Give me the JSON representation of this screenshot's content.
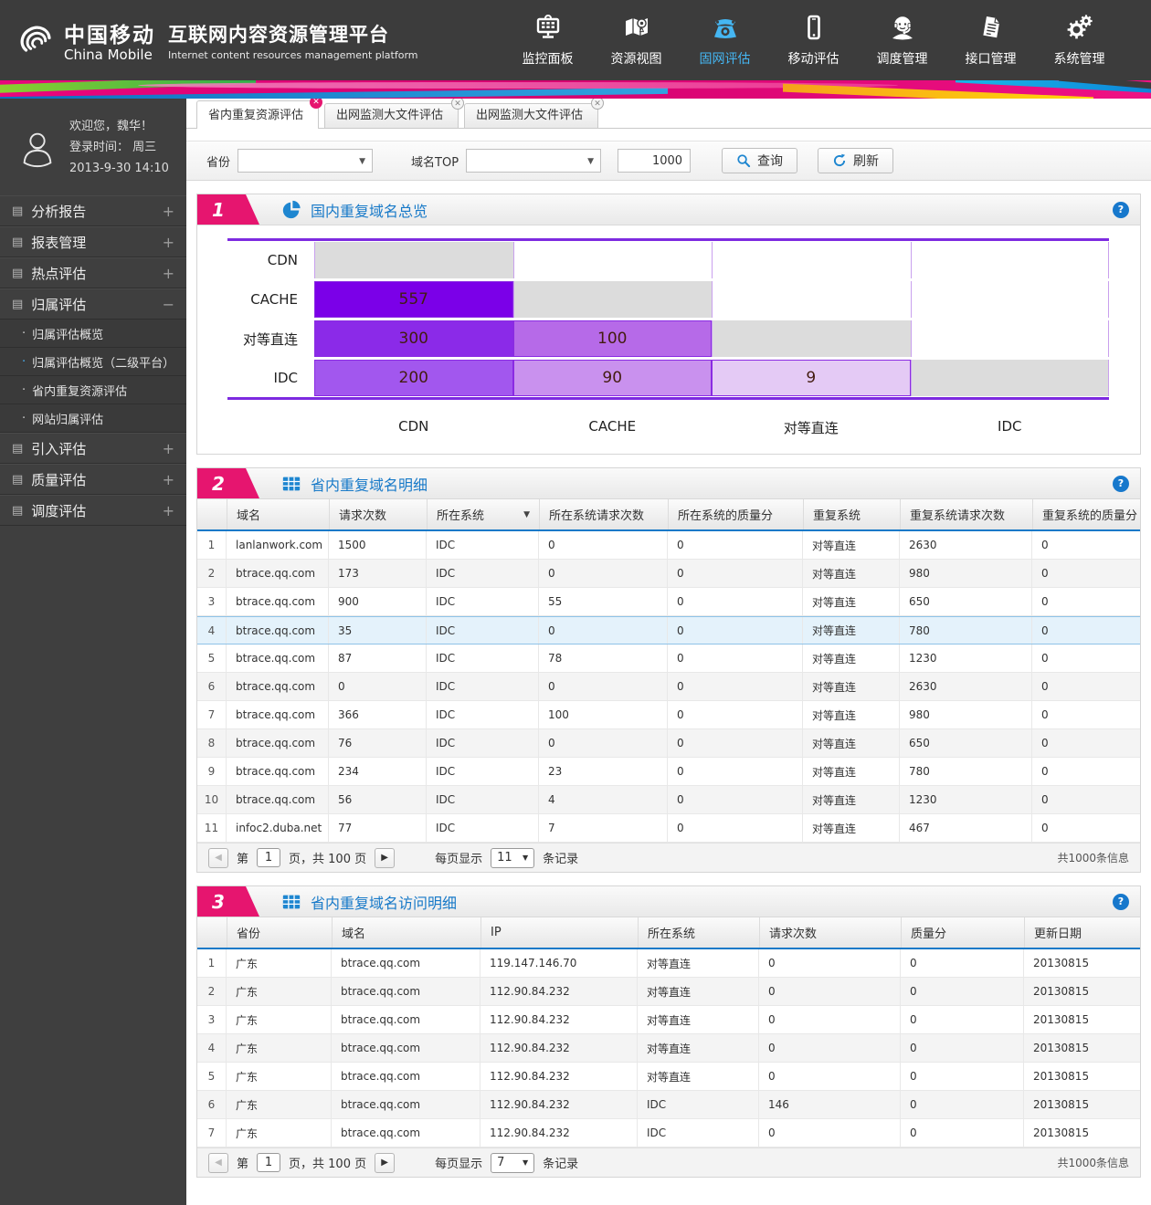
{
  "header": {
    "brand_cn": "中国移动",
    "brand_en": "China Mobile",
    "title": "互联网内容资源管理平台",
    "subtitle": "Internet content resources management platform",
    "active_color": "#45b6f2",
    "nav": [
      {
        "label": "监控面板",
        "icon": "monitor-icon",
        "active": false
      },
      {
        "label": "资源视图",
        "icon": "map-icon",
        "active": false
      },
      {
        "label": "固网评估",
        "icon": "telephone-icon",
        "active": true
      },
      {
        "label": "移动评估",
        "icon": "mobile-icon",
        "active": false
      },
      {
        "label": "调度管理",
        "icon": "headset-icon",
        "active": false
      },
      {
        "label": "接口管理",
        "icon": "document-icon",
        "active": false
      },
      {
        "label": "系统管理",
        "icon": "gears-icon",
        "active": false
      }
    ]
  },
  "sidebar": {
    "welcome": "欢迎您，魏华！",
    "login_line1": "登录时间：  周三",
    "login_line2": "2013-9-30   14:10",
    "menu": [
      {
        "label": "分析报告",
        "state": "+"
      },
      {
        "label": "报表管理",
        "state": "+"
      },
      {
        "label": "热点评估",
        "state": "+"
      },
      {
        "label": "归属评估",
        "state": "−",
        "expanded": true,
        "children": [
          {
            "label": "归属评估概览",
            "bullet_active": false
          },
          {
            "label": "归属评估概览（二级平台）",
            "bullet_active": true
          },
          {
            "label": "省内重复资源评估",
            "bullet_active": false
          },
          {
            "label": "网站归属评估",
            "bullet_active": false
          }
        ]
      },
      {
        "label": "引入评估",
        "state": "+"
      },
      {
        "label": "质量评估",
        "state": "+"
      },
      {
        "label": "调度评估",
        "state": "+"
      }
    ]
  },
  "tabs": [
    {
      "label": "省内重复资源评估",
      "active": true
    },
    {
      "label": "出网监测大文件评估",
      "active": false
    },
    {
      "label": "出网监测大文件评估",
      "active": false
    }
  ],
  "filters": {
    "province_label": "省份",
    "province_value": "",
    "domain_top_label": "域名TOP",
    "domain_top_value": "",
    "top_value": "1000",
    "search_label": "查询",
    "refresh_label": "刷新"
  },
  "section1": {
    "number": "1",
    "title": "国内重复域名总览"
  },
  "chart_data": {
    "type": "heatmap",
    "title": "国内重复域名总览",
    "rows": [
      "CDN",
      "CACHE",
      "对等直连",
      "IDC"
    ],
    "cols": [
      "CDN",
      "CACHE",
      "对等直连",
      "IDC"
    ],
    "diag_color": "#dcdcdc",
    "cells": [
      [
        {
          "type": "diag"
        },
        {
          "type": "empty"
        },
        {
          "type": "empty"
        },
        {
          "type": "empty"
        }
      ],
      [
        {
          "type": "value",
          "value": "557",
          "color": "#7b00e8"
        },
        {
          "type": "diag"
        },
        {
          "type": "empty"
        },
        {
          "type": "empty"
        }
      ],
      [
        {
          "type": "value",
          "value": "300",
          "color": "#8b2ae8"
        },
        {
          "type": "value",
          "value": "100",
          "color": "#b66ae8"
        },
        {
          "type": "diag"
        },
        {
          "type": "empty"
        }
      ],
      [
        {
          "type": "value",
          "value": "200",
          "color": "#a257ee"
        },
        {
          "type": "value",
          "value": "90",
          "color": "#c991ee"
        },
        {
          "type": "value",
          "value": "9",
          "color": "#e4caf5"
        },
        {
          "type": "diag"
        }
      ]
    ]
  },
  "section2": {
    "number": "2",
    "title": "省内重复域名明细",
    "headers": [
      {
        "label": ""
      },
      {
        "label": "域名"
      },
      {
        "label": "请求次数"
      },
      {
        "label": "所在系统",
        "dropdown": true
      },
      {
        "label": "所在系统请求次数"
      },
      {
        "label": "所在系统的质量分"
      },
      {
        "label": "重复系统"
      },
      {
        "label": "重复系统请求次数"
      },
      {
        "label": "重复系统的质量分"
      }
    ],
    "selected_row": 4,
    "rows": [
      [
        "1",
        "lanlanwork.com",
        "1500",
        "IDC",
        "0",
        "0",
        "对等直连",
        "2630",
        "0"
      ],
      [
        "2",
        "btrace.qq.com",
        "173",
        "IDC",
        "0",
        "0",
        "对等直连",
        "980",
        "0"
      ],
      [
        "3",
        "btrace.qq.com",
        "900",
        "IDC",
        "55",
        "0",
        "对等直连",
        "650",
        "0"
      ],
      [
        "4",
        "btrace.qq.com",
        "35",
        "IDC",
        "0",
        "0",
        "对等直连",
        "780",
        "0"
      ],
      [
        "5",
        "btrace.qq.com",
        "87",
        "IDC",
        "78",
        "0",
        "对等直连",
        "1230",
        "0"
      ],
      [
        "6",
        "btrace.qq.com",
        "0",
        "IDC",
        "0",
        "0",
        "对等直连",
        "2630",
        "0"
      ],
      [
        "7",
        "btrace.qq.com",
        "366",
        "IDC",
        "100",
        "0",
        "对等直连",
        "980",
        "0"
      ],
      [
        "8",
        "btrace.qq.com",
        "76",
        "IDC",
        "0",
        "0",
        "对等直连",
        "650",
        "0"
      ],
      [
        "9",
        "btrace.qq.com",
        "234",
        "IDC",
        "23",
        "0",
        "对等直连",
        "780",
        "0"
      ],
      [
        "10",
        "btrace.qq.com",
        "56",
        "IDC",
        "4",
        "0",
        "对等直连",
        "1230",
        "0"
      ],
      [
        "11",
        "infoc2.duba.net",
        "77",
        "IDC",
        "7",
        "0",
        "对等直连",
        "467",
        "0"
      ]
    ],
    "pagination": {
      "first_label": "第",
      "page": "1",
      "pages_label": "页，共 100 页",
      "per_page_label": "每页显示",
      "per_page": "11",
      "records_label": "条记录",
      "total": "共1000条信息"
    }
  },
  "section3": {
    "number": "3",
    "title": "省内重复域名访问明细",
    "headers": [
      {
        "label": ""
      },
      {
        "label": "省份"
      },
      {
        "label": "域名"
      },
      {
        "label": "IP"
      },
      {
        "label": "所在系统"
      },
      {
        "label": "请求次数"
      },
      {
        "label": "质量分"
      },
      {
        "label": "更新日期"
      }
    ],
    "selected_row": 0,
    "rows": [
      [
        "1",
        "广东",
        "btrace.qq.com",
        "119.147.146.70",
        "对等直连",
        "0",
        "0",
        "20130815"
      ],
      [
        "2",
        "广东",
        "btrace.qq.com",
        "112.90.84.232",
        "对等直连",
        "0",
        "0",
        "20130815"
      ],
      [
        "3",
        "广东",
        "btrace.qq.com",
        "112.90.84.232",
        "对等直连",
        "0",
        "0",
        "20130815"
      ],
      [
        "4",
        "广东",
        "btrace.qq.com",
        "112.90.84.232",
        "对等直连",
        "0",
        "0",
        "20130815"
      ],
      [
        "5",
        "广东",
        "btrace.qq.com",
        "112.90.84.232",
        "对等直连",
        "0",
        "0",
        "20130815"
      ],
      [
        "6",
        "广东",
        "btrace.qq.com",
        "112.90.84.232",
        "IDC",
        "146",
        "0",
        "20130815"
      ],
      [
        "7",
        "广东",
        "btrace.qq.com",
        "112.90.84.232",
        "IDC",
        "0",
        "0",
        "20130815"
      ]
    ],
    "pagination": {
      "first_label": "第",
      "page": "1",
      "pages_label": "页，共 100 页",
      "per_page_label": "每页显示",
      "per_page": "7",
      "records_label": "条记录",
      "total": "共1000条信息"
    }
  }
}
